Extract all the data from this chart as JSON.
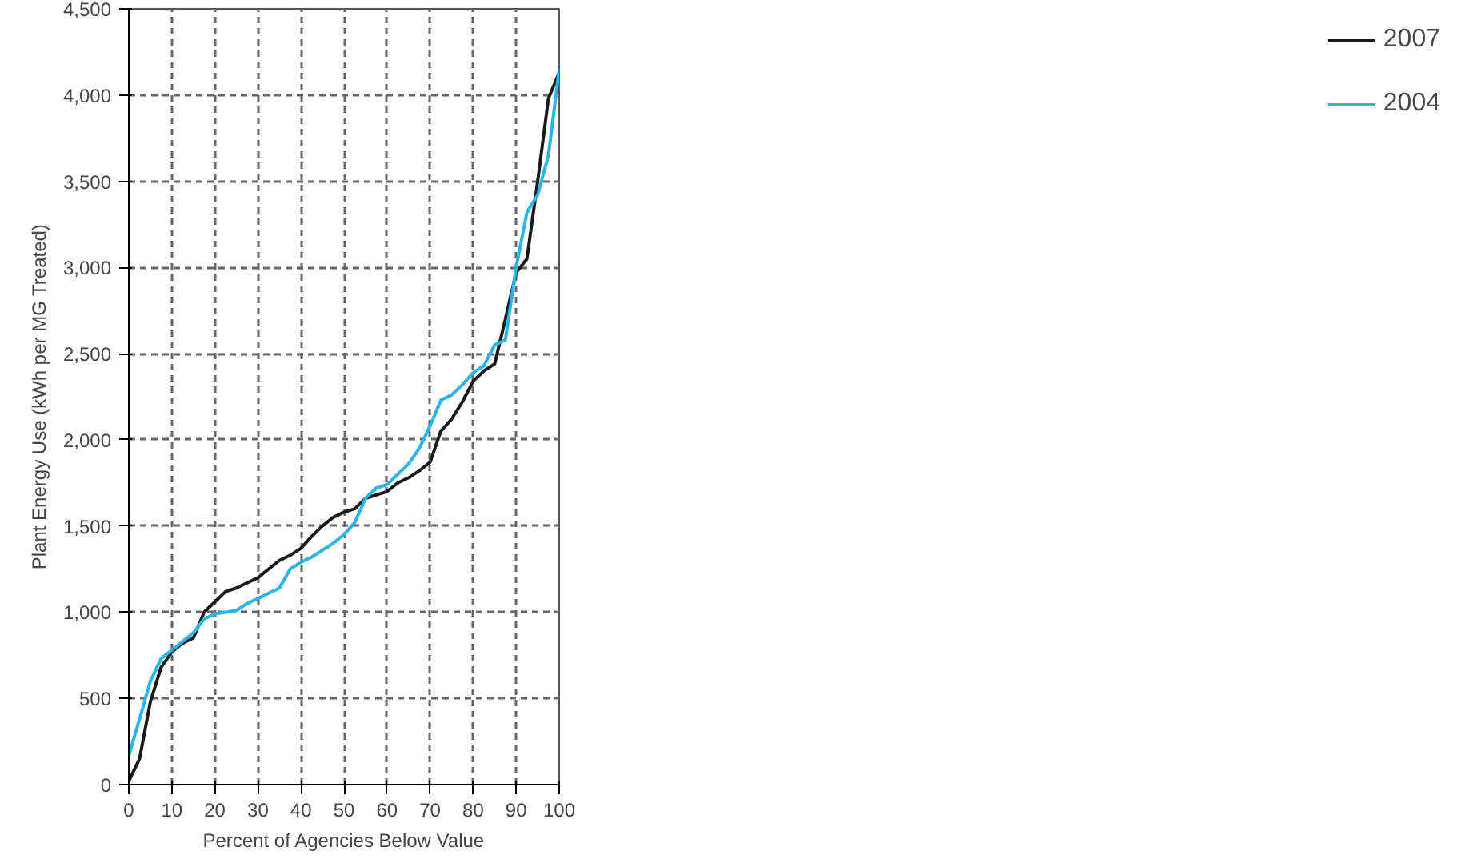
{
  "chart_data": {
    "type": "line",
    "xlabel": "Percent of Agencies Below Value",
    "ylabel": "Plant Energy Use (kWh per MG Treated)",
    "x": [
      0,
      2.5,
      5,
      7.5,
      10,
      12.5,
      15,
      17.5,
      20,
      22.5,
      25,
      27.5,
      30,
      32.5,
      35,
      37.5,
      40,
      42.5,
      45,
      47.5,
      50,
      52.5,
      55,
      57.5,
      60,
      62.5,
      65,
      67.5,
      70,
      72.5,
      75,
      77.5,
      80,
      82.5,
      85,
      87.5,
      90,
      92.5,
      95,
      97.5,
      100
    ],
    "series": [
      {
        "name": "2007",
        "color": "#1a1a1a",
        "values": [
          20,
          150,
          480,
          680,
          770,
          820,
          850,
          1000,
          1060,
          1120,
          1140,
          1170,
          1200,
          1250,
          1300,
          1330,
          1370,
          1440,
          1500,
          1550,
          1580,
          1600,
          1660,
          1680,
          1700,
          1750,
          1780,
          1820,
          1870,
          2050,
          2120,
          2220,
          2340,
          2400,
          2440,
          2700,
          2970,
          3050,
          3500,
          3980,
          4130
        ]
      },
      {
        "name": "2004",
        "color": "#29b5e8",
        "values": [
          170,
          380,
          600,
          730,
          780,
          830,
          880,
          960,
          990,
          1000,
          1010,
          1050,
          1080,
          1110,
          1140,
          1250,
          1290,
          1320,
          1360,
          1400,
          1450,
          1520,
          1660,
          1720,
          1740,
          1800,
          1860,
          1950,
          2080,
          2230,
          2260,
          2320,
          2390,
          2430,
          2550,
          2580,
          3000,
          3320,
          3420,
          3650,
          4150
        ]
      }
    ],
    "xlim": [
      0,
      100
    ],
    "xticks": [
      0,
      10,
      20,
      30,
      40,
      50,
      60,
      70,
      80,
      90,
      100
    ],
    "ylim": [
      0,
      4500
    ],
    "yticks": [
      0,
      500,
      {
        "value": 1000,
        "label": "1,000"
      },
      {
        "value": 1500,
        "label": "1,500"
      },
      {
        "value": 2000,
        "label": "2,000"
      },
      {
        "value": 2500,
        "label": "2,500"
      },
      {
        "value": 3000,
        "label": "3,000"
      },
      {
        "value": 3500,
        "label": "3,500"
      },
      {
        "value": 4000,
        "label": "4,000"
      },
      {
        "value": 4500,
        "label": "4,500"
      }
    ],
    "grid": true,
    "legend": "right",
    "marker": "none",
    "line_style": "solid"
  }
}
